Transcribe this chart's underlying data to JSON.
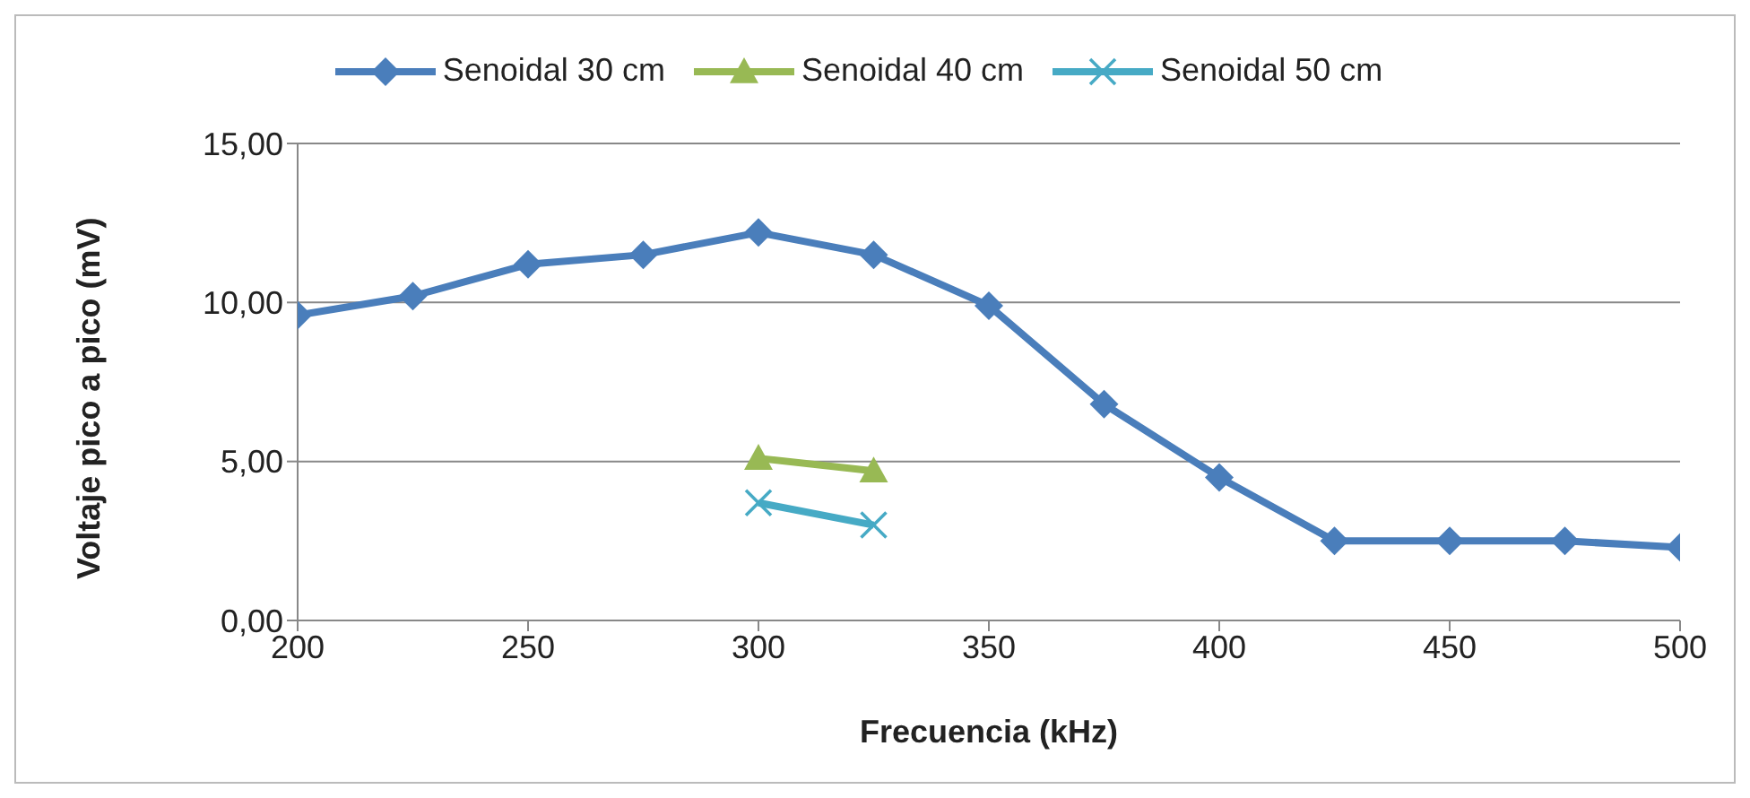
{
  "chart_data": {
    "type": "line",
    "xlabel": "Frecuencia (kHz)",
    "ylabel": "Voltaje pico a pico (mV)",
    "xlim": [
      200,
      500
    ],
    "xticks": [
      200,
      250,
      300,
      350,
      400,
      450,
      500
    ],
    "ylim": [
      0,
      15
    ],
    "yticks": [
      {
        "value": 0,
        "label": "0,00"
      },
      {
        "value": 5,
        "label": "5,00"
      },
      {
        "value": 10,
        "label": "10,00"
      },
      {
        "value": 15,
        "label": "15,00"
      }
    ],
    "grid": "y",
    "legend": "top",
    "line_style": "solid",
    "series": [
      {
        "name": "Senoidal 30 cm",
        "color": "#4a7ebb",
        "marker": "diamond",
        "x": [
          200,
          225,
          250,
          275,
          300,
          325,
          350,
          375,
          400,
          425,
          450,
          475,
          500
        ],
        "values": [
          9.6,
          10.2,
          11.2,
          11.5,
          12.2,
          11.5,
          9.9,
          6.8,
          4.5,
          2.5,
          2.5,
          2.5,
          2.3
        ]
      },
      {
        "name": "Senoidal 40 cm",
        "color": "#98b954",
        "marker": "triangle",
        "x": [
          300,
          325
        ],
        "values": [
          5.1,
          4.7
        ]
      },
      {
        "name": "Senoidal 50 cm",
        "color": "#46aac5",
        "marker": "cross",
        "x": [
          300,
          325
        ],
        "values": [
          3.7,
          3.0
        ]
      }
    ]
  }
}
